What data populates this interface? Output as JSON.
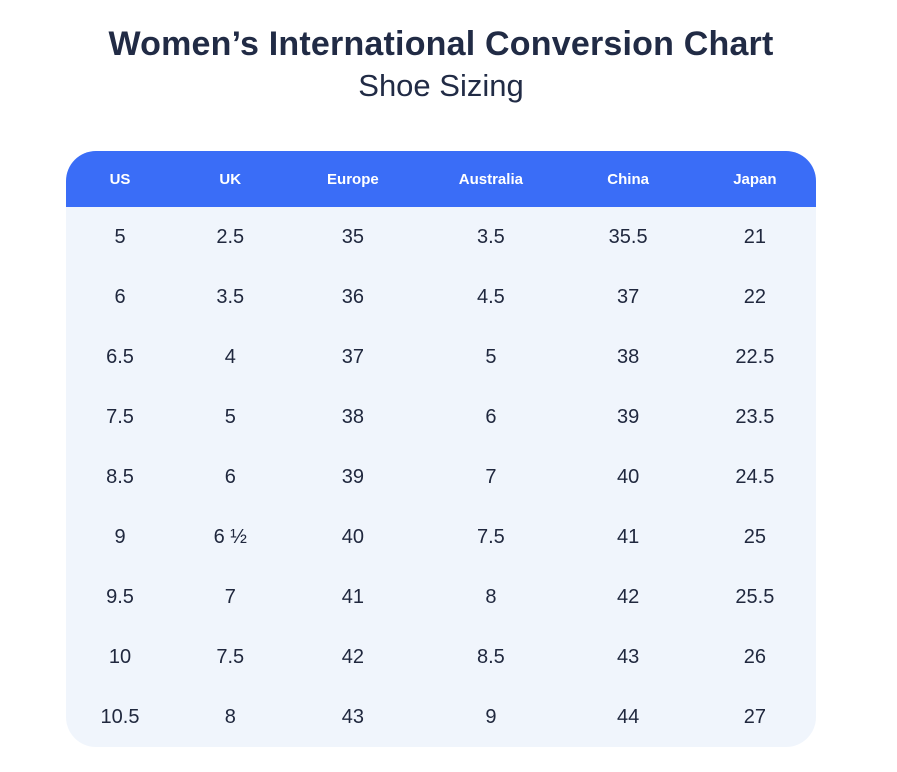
{
  "page": {
    "title": "Women’s International Conversion Chart",
    "subtitle": "Shoe Sizing"
  },
  "colors": {
    "header_bg": "#3a6df7",
    "header_text": "#ffffff",
    "body_bg": "#f0f5fc",
    "text": "#20283e",
    "title_text": "#212b45",
    "footer_strip": "#eeeff1",
    "page_bg": "#ffffff"
  },
  "chart_data": {
    "type": "table",
    "title": "Women’s International Conversion Chart",
    "subtitle": "Shoe Sizing",
    "columns": [
      "US",
      "UK",
      "Europe",
      "Australia",
      "China",
      "Japan"
    ],
    "rows": [
      [
        "5",
        "2.5",
        "35",
        "3.5",
        "35.5",
        "21"
      ],
      [
        "6",
        "3.5",
        "36",
        "4.5",
        "37",
        "22"
      ],
      [
        "6.5",
        "4",
        "37",
        "5",
        "38",
        "22.5"
      ],
      [
        "7.5",
        "5",
        "38",
        "6",
        "39",
        "23.5"
      ],
      [
        "8.5",
        "6",
        "39",
        "7",
        "40",
        "24.5"
      ],
      [
        "9",
        "6 ½",
        "40",
        "7.5",
        "41",
        "25"
      ],
      [
        "9.5",
        "7",
        "41",
        "8",
        "42",
        "25.5"
      ],
      [
        "10",
        "7.5",
        "42",
        "8.5",
        "43",
        "26"
      ],
      [
        "10.5",
        "8",
        "43",
        "9",
        "44",
        "27"
      ]
    ],
    "layout": {
      "header_position": "top",
      "grid": false,
      "column_width_percents": [
        14.4,
        15.0,
        17.7,
        19.1,
        17.5,
        16.3
      ]
    }
  }
}
